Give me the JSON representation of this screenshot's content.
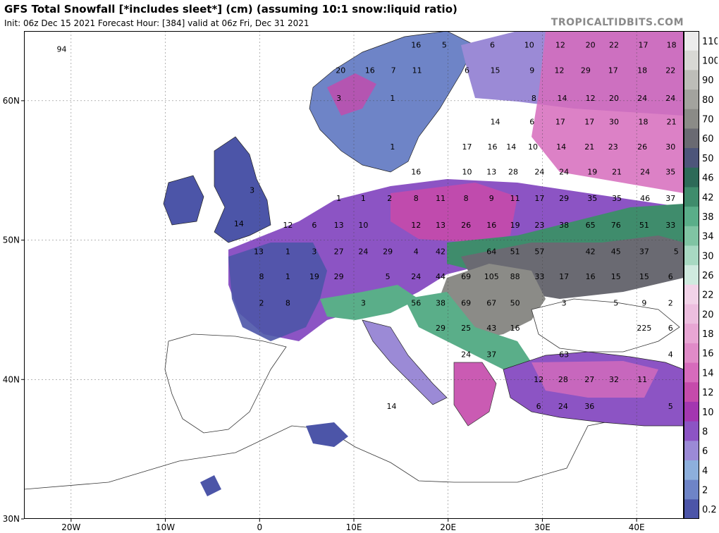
{
  "header": {
    "title": "GFS Total Snowfall [*includes sleet*] (cm) (assuming 10:1 snow:liquid ratio)",
    "subtitle": "Init: 06z Dec 15 2021   Forecast Hour: [384]   valid at 06z Fri, Dec 31 2021",
    "source": "TROPICALTIDBITS.COM"
  },
  "map": {
    "lon_range": [
      -25,
      45
    ],
    "lat_range": [
      30,
      65
    ],
    "lon_ticks": [
      "20W",
      "10W",
      "0",
      "10E",
      "20E",
      "30E",
      "40E"
    ],
    "lon_values": [
      -20,
      -10,
      0,
      10,
      20,
      30,
      40
    ],
    "lat_ticks": [
      "60N",
      "50N",
      "40N",
      "30N"
    ],
    "lat_values": [
      60,
      50,
      40,
      30
    ],
    "values": [
      {
        "t": "94",
        "lon": -21,
        "lat": 63.5
      },
      {
        "t": "16",
        "lon": 16.6,
        "lat": 63.8
      },
      {
        "t": "5",
        "lon": 19.6,
        "lat": 63.8
      },
      {
        "t": "6",
        "lon": 24.7,
        "lat": 63.8
      },
      {
        "t": "10",
        "lon": 28.6,
        "lat": 63.8
      },
      {
        "t": "12",
        "lon": 31.9,
        "lat": 63.8
      },
      {
        "t": "20",
        "lon": 35.1,
        "lat": 63.8
      },
      {
        "t": "22",
        "lon": 37.6,
        "lat": 63.8
      },
      {
        "t": "17",
        "lon": 40.7,
        "lat": 63.8
      },
      {
        "t": "18",
        "lon": 43.7,
        "lat": 63.8
      },
      {
        "t": "20",
        "lon": 8.6,
        "lat": 62.0
      },
      {
        "t": "16",
        "lon": 11.7,
        "lat": 62.0
      },
      {
        "t": "7",
        "lon": 14.2,
        "lat": 62.0
      },
      {
        "t": "11",
        "lon": 16.7,
        "lat": 62.0
      },
      {
        "t": "6",
        "lon": 22.0,
        "lat": 62.0
      },
      {
        "t": "15",
        "lon": 25.0,
        "lat": 62.0
      },
      {
        "t": "9",
        "lon": 28.9,
        "lat": 62.0
      },
      {
        "t": "12",
        "lon": 31.8,
        "lat": 62.0
      },
      {
        "t": "29",
        "lon": 34.6,
        "lat": 62.0
      },
      {
        "t": "17",
        "lon": 37.5,
        "lat": 62.0
      },
      {
        "t": "18",
        "lon": 40.6,
        "lat": 62.0
      },
      {
        "t": "22",
        "lon": 43.6,
        "lat": 62.0
      },
      {
        "t": "3",
        "lon": 8.4,
        "lat": 60.0
      },
      {
        "t": "1",
        "lon": 14.1,
        "lat": 60.0
      },
      {
        "t": "8",
        "lon": 29.1,
        "lat": 60.0
      },
      {
        "t": "14",
        "lon": 32.1,
        "lat": 60.0
      },
      {
        "t": "12",
        "lon": 35.1,
        "lat": 60.0
      },
      {
        "t": "20",
        "lon": 37.6,
        "lat": 60.0
      },
      {
        "t": "24",
        "lon": 40.6,
        "lat": 60.0
      },
      {
        "t": "24",
        "lon": 43.6,
        "lat": 60.0
      },
      {
        "t": "14",
        "lon": 25.0,
        "lat": 58.3
      },
      {
        "t": "6",
        "lon": 28.9,
        "lat": 58.3
      },
      {
        "t": "17",
        "lon": 31.9,
        "lat": 58.3
      },
      {
        "t": "17",
        "lon": 35.0,
        "lat": 58.3
      },
      {
        "t": "30",
        "lon": 37.6,
        "lat": 58.3
      },
      {
        "t": "18",
        "lon": 40.7,
        "lat": 58.3
      },
      {
        "t": "21",
        "lon": 43.7,
        "lat": 58.3
      },
      {
        "t": "1",
        "lon": 14.1,
        "lat": 56.5
      },
      {
        "t": "17",
        "lon": 22.0,
        "lat": 56.5
      },
      {
        "t": "16",
        "lon": 24.7,
        "lat": 56.5
      },
      {
        "t": "14",
        "lon": 26.7,
        "lat": 56.5
      },
      {
        "t": "10",
        "lon": 29.0,
        "lat": 56.5
      },
      {
        "t": "14",
        "lon": 32.0,
        "lat": 56.5
      },
      {
        "t": "21",
        "lon": 35.0,
        "lat": 56.5
      },
      {
        "t": "23",
        "lon": 37.5,
        "lat": 56.5
      },
      {
        "t": "26",
        "lon": 40.6,
        "lat": 56.5
      },
      {
        "t": "30",
        "lon": 43.6,
        "lat": 56.5
      },
      {
        "t": "16",
        "lon": 16.6,
        "lat": 54.7
      },
      {
        "t": "10",
        "lon": 22.0,
        "lat": 54.7
      },
      {
        "t": "13",
        "lon": 24.6,
        "lat": 54.7
      },
      {
        "t": "28",
        "lon": 26.9,
        "lat": 54.7
      },
      {
        "t": "24",
        "lon": 29.7,
        "lat": 54.7
      },
      {
        "t": "24",
        "lon": 32.3,
        "lat": 54.7
      },
      {
        "t": "19",
        "lon": 35.3,
        "lat": 54.7
      },
      {
        "t": "21",
        "lon": 37.9,
        "lat": 54.7
      },
      {
        "t": "24",
        "lon": 40.9,
        "lat": 54.7
      },
      {
        "t": "35",
        "lon": 43.6,
        "lat": 54.7
      },
      {
        "t": "3",
        "lon": -0.8,
        "lat": 53.4
      },
      {
        "t": "1",
        "lon": 8.4,
        "lat": 52.8
      },
      {
        "t": "1",
        "lon": 11.0,
        "lat": 52.8
      },
      {
        "t": "2",
        "lon": 13.8,
        "lat": 52.8
      },
      {
        "t": "8",
        "lon": 16.6,
        "lat": 52.8
      },
      {
        "t": "11",
        "lon": 19.2,
        "lat": 52.8
      },
      {
        "t": "8",
        "lon": 21.9,
        "lat": 52.8
      },
      {
        "t": "9",
        "lon": 24.6,
        "lat": 52.8
      },
      {
        "t": "11",
        "lon": 27.1,
        "lat": 52.8
      },
      {
        "t": "17",
        "lon": 29.7,
        "lat": 52.8
      },
      {
        "t": "29",
        "lon": 32.3,
        "lat": 52.8
      },
      {
        "t": "35",
        "lon": 35.3,
        "lat": 52.8
      },
      {
        "t": "35",
        "lon": 37.9,
        "lat": 52.8
      },
      {
        "t": "46",
        "lon": 40.9,
        "lat": 52.8
      },
      {
        "t": "37",
        "lon": 43.6,
        "lat": 52.8
      },
      {
        "t": "14",
        "lon": -2.2,
        "lat": 51.0
      },
      {
        "t": "12",
        "lon": 3.0,
        "lat": 50.9
      },
      {
        "t": "6",
        "lon": 5.8,
        "lat": 50.9
      },
      {
        "t": "13",
        "lon": 8.4,
        "lat": 50.9
      },
      {
        "t": "10",
        "lon": 11.0,
        "lat": 50.9
      },
      {
        "t": "12",
        "lon": 16.6,
        "lat": 50.9
      },
      {
        "t": "13",
        "lon": 19.2,
        "lat": 50.9
      },
      {
        "t": "26",
        "lon": 21.9,
        "lat": 50.9
      },
      {
        "t": "16",
        "lon": 24.6,
        "lat": 50.9
      },
      {
        "t": "19",
        "lon": 27.1,
        "lat": 50.9
      },
      {
        "t": "23",
        "lon": 29.7,
        "lat": 50.9
      },
      {
        "t": "38",
        "lon": 32.3,
        "lat": 50.9
      },
      {
        "t": "65",
        "lon": 35.1,
        "lat": 50.9
      },
      {
        "t": "76",
        "lon": 37.8,
        "lat": 50.9
      },
      {
        "t": "51",
        "lon": 40.8,
        "lat": 50.9
      },
      {
        "t": "33",
        "lon": 43.6,
        "lat": 50.9
      },
      {
        "t": "13",
        "lon": -0.1,
        "lat": 49.0
      },
      {
        "t": "1",
        "lon": 3.0,
        "lat": 49.0
      },
      {
        "t": "3",
        "lon": 5.8,
        "lat": 49.0
      },
      {
        "t": "27",
        "lon": 8.4,
        "lat": 49.0
      },
      {
        "t": "24",
        "lon": 11.0,
        "lat": 49.0
      },
      {
        "t": "29",
        "lon": 13.6,
        "lat": 49.0
      },
      {
        "t": "4",
        "lon": 16.6,
        "lat": 49.0
      },
      {
        "t": "42",
        "lon": 19.2,
        "lat": 49.0
      },
      {
        "t": "64",
        "lon": 24.6,
        "lat": 49.0
      },
      {
        "t": "51",
        "lon": 27.1,
        "lat": 49.0
      },
      {
        "t": "57",
        "lon": 29.7,
        "lat": 49.0
      },
      {
        "t": "42",
        "lon": 35.1,
        "lat": 49.0
      },
      {
        "t": "45",
        "lon": 37.8,
        "lat": 49.0
      },
      {
        "t": "37",
        "lon": 40.8,
        "lat": 49.0
      },
      {
        "t": "5",
        "lon": 44.2,
        "lat": 49.0
      },
      {
        "t": "8",
        "lon": 0.2,
        "lat": 47.2
      },
      {
        "t": "1",
        "lon": 3.0,
        "lat": 47.2
      },
      {
        "t": "19",
        "lon": 5.8,
        "lat": 47.2
      },
      {
        "t": "29",
        "lon": 8.4,
        "lat": 47.2
      },
      {
        "t": "5",
        "lon": 13.6,
        "lat": 47.2
      },
      {
        "t": "24",
        "lon": 16.6,
        "lat": 47.2
      },
      {
        "t": "44",
        "lon": 19.2,
        "lat": 47.2
      },
      {
        "t": "69",
        "lon": 21.9,
        "lat": 47.2
      },
      {
        "t": "105",
        "lon": 24.6,
        "lat": 47.2
      },
      {
        "t": "88",
        "lon": 27.1,
        "lat": 47.2
      },
      {
        "t": "33",
        "lon": 29.7,
        "lat": 47.2
      },
      {
        "t": "17",
        "lon": 32.3,
        "lat": 47.2
      },
      {
        "t": "16",
        "lon": 35.1,
        "lat": 47.2
      },
      {
        "t": "15",
        "lon": 37.8,
        "lat": 47.2
      },
      {
        "t": "15",
        "lon": 40.8,
        "lat": 47.2
      },
      {
        "t": "6",
        "lon": 43.6,
        "lat": 47.2
      },
      {
        "t": "2",
        "lon": 0.2,
        "lat": 45.3
      },
      {
        "t": "8",
        "lon": 3.0,
        "lat": 45.3
      },
      {
        "t": "3",
        "lon": 11.0,
        "lat": 45.3
      },
      {
        "t": "56",
        "lon": 16.6,
        "lat": 45.3
      },
      {
        "t": "38",
        "lon": 19.2,
        "lat": 45.3
      },
      {
        "t": "69",
        "lon": 21.9,
        "lat": 45.3
      },
      {
        "t": "67",
        "lon": 24.6,
        "lat": 45.3
      },
      {
        "t": "50",
        "lon": 27.1,
        "lat": 45.3
      },
      {
        "t": "3",
        "lon": 32.3,
        "lat": 45.3
      },
      {
        "t": "5",
        "lon": 37.8,
        "lat": 45.3
      },
      {
        "t": "9",
        "lon": 40.8,
        "lat": 45.3
      },
      {
        "t": "2",
        "lon": 43.6,
        "lat": 45.3
      },
      {
        "t": "29",
        "lon": 19.2,
        "lat": 43.5
      },
      {
        "t": "25",
        "lon": 21.9,
        "lat": 43.5
      },
      {
        "t": "43",
        "lon": 24.6,
        "lat": 43.5
      },
      {
        "t": "16",
        "lon": 27.1,
        "lat": 43.5
      },
      {
        "t": "225",
        "lon": 40.8,
        "lat": 43.5
      },
      {
        "t": "6",
        "lon": 43.6,
        "lat": 43.5
      },
      {
        "t": "24",
        "lon": 21.9,
        "lat": 41.6
      },
      {
        "t": "37",
        "lon": 24.6,
        "lat": 41.6
      },
      {
        "t": "63",
        "lon": 32.3,
        "lat": 41.6
      },
      {
        "t": "4",
        "lon": 43.6,
        "lat": 41.6
      },
      {
        "t": "12",
        "lon": 29.6,
        "lat": 39.8
      },
      {
        "t": "28",
        "lon": 32.2,
        "lat": 39.8
      },
      {
        "t": "27",
        "lon": 35.0,
        "lat": 39.8
      },
      {
        "t": "32",
        "lon": 37.6,
        "lat": 39.8
      },
      {
        "t": "11",
        "lon": 40.6,
        "lat": 39.8
      },
      {
        "t": "14",
        "lon": 14.0,
        "lat": 37.9
      },
      {
        "t": "6",
        "lon": 29.6,
        "lat": 37.9
      },
      {
        "t": "24",
        "lon": 32.2,
        "lat": 37.9
      },
      {
        "t": "36",
        "lon": 35.0,
        "lat": 37.9
      },
      {
        "t": "5",
        "lon": 43.6,
        "lat": 37.9
      }
    ]
  },
  "scale": {
    "labels": [
      "110",
      "100",
      "90",
      "80",
      "70",
      "60",
      "50",
      "46",
      "42",
      "38",
      "34",
      "30",
      "26",
      "22",
      "20",
      "18",
      "16",
      "14",
      "12",
      "10",
      "8",
      "6",
      "4",
      "2",
      "0.2"
    ],
    "colors": [
      "#ececec",
      "#d8d8d4",
      "#bdbdb8",
      "#a3a39e",
      "#8b8b87",
      "#6a6a72",
      "#4d557a",
      "#2d6a58",
      "#3f8c6c",
      "#5aae89",
      "#80c4a3",
      "#a8d9c2",
      "#d0eadf",
      "#f2d3e8",
      "#edbedf",
      "#e8a6d4",
      "#e08bc8",
      "#d66bbc",
      "#c54aab",
      "#a336b0",
      "#8c54c4",
      "#9b8ad6",
      "#8dafdc",
      "#6e84c7",
      "#4c55a8"
    ]
  }
}
